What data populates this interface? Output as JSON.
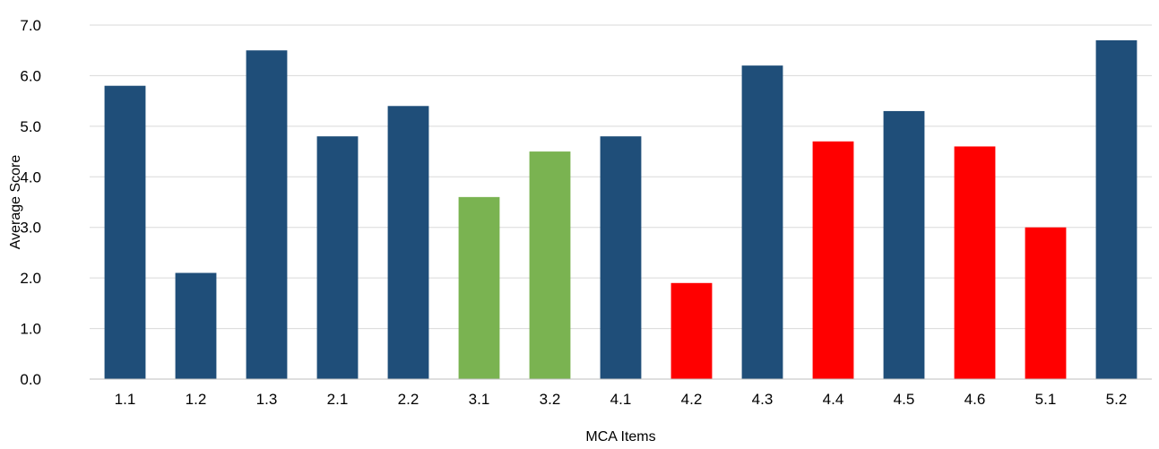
{
  "chart_data": {
    "type": "bar",
    "title": "",
    "xlabel": "MCA Items",
    "ylabel": "Average Score",
    "ylim": [
      0,
      7
    ],
    "yticks": [
      "0.0",
      "1.0",
      "2.0",
      "3.0",
      "4.0",
      "5.0",
      "6.0",
      "7.0"
    ],
    "grid": true,
    "legend": "none",
    "categories": [
      "1.1",
      "1.2",
      "1.3",
      "2.1",
      "2.2",
      "3.1",
      "3.2",
      "4.1",
      "4.2",
      "4.3",
      "4.4",
      "4.5",
      "4.6",
      "5.1",
      "5.2"
    ],
    "values": [
      5.8,
      2.1,
      6.5,
      4.8,
      5.4,
      3.6,
      4.5,
      4.8,
      1.9,
      6.2,
      4.7,
      5.3,
      4.6,
      3.0,
      6.7
    ],
    "bar_colors": [
      "#1f4e79",
      "#1f4e79",
      "#1f4e79",
      "#1f4e79",
      "#1f4e79",
      "#7ab351",
      "#7ab351",
      "#1f4e79",
      "#ff0000",
      "#1f4e79",
      "#ff0000",
      "#1f4e79",
      "#ff0000",
      "#ff0000",
      "#1f4e79"
    ]
  }
}
